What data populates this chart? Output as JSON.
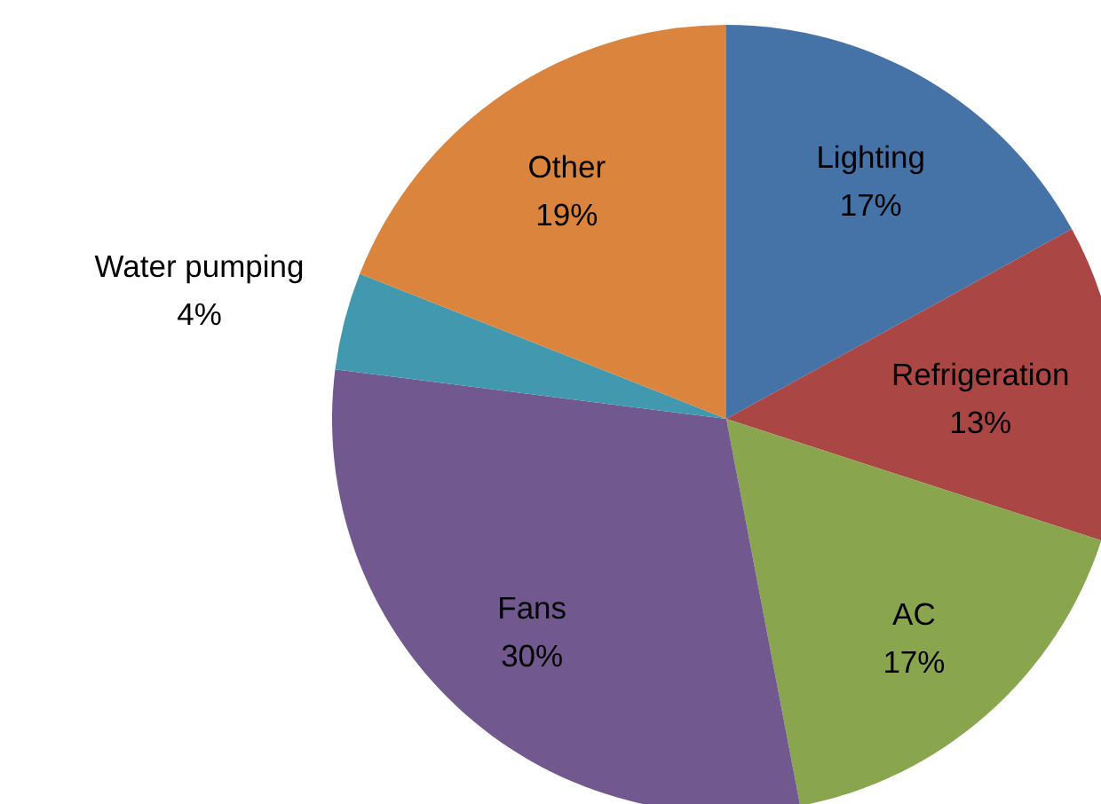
{
  "chart_data": {
    "type": "pie",
    "categories": [
      "Lighting",
      "Refrigeration",
      "AC",
      "Fans",
      "Water pumping",
      "Other"
    ],
    "values": [
      17,
      13,
      17,
      30,
      4,
      19
    ],
    "value_labels": [
      "17%",
      "13%",
      "17%",
      "30%",
      "4%",
      "19%"
    ],
    "colors": [
      "#4572a7",
      "#aa4643",
      "#89a54e",
      "#71588f",
      "#4198af",
      "#db843d"
    ],
    "legend": false
  }
}
